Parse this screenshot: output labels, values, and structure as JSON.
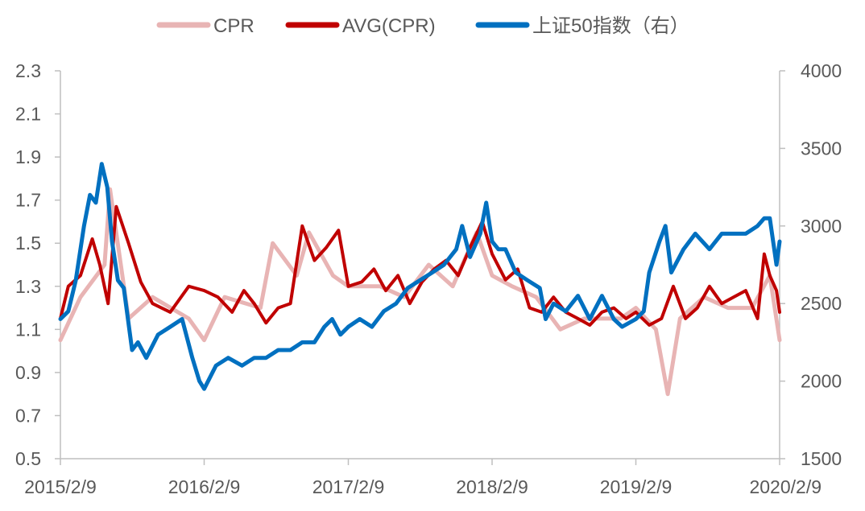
{
  "chart_data": {
    "type": "line",
    "title": "",
    "legend_position": "top",
    "grid": false,
    "x_ticks": [
      "2015/2/9",
      "2016/2/9",
      "2017/2/9",
      "2018/2/9",
      "2019/2/9",
      "2020/2/9"
    ],
    "x_range": [
      "2015/2/9",
      "2020/2/9"
    ],
    "y_left": {
      "range": [
        0.5,
        2.3
      ],
      "ticks": [
        "0.5",
        "0.7",
        "0.9",
        "1.1",
        "1.3",
        "1.5",
        "1.7",
        "1.9",
        "2.1",
        "2.3"
      ]
    },
    "y_right": {
      "range": [
        1500,
        4000
      ],
      "ticks": [
        "1500",
        "2000",
        "2500",
        "3000",
        "3500",
        "4000"
      ]
    },
    "series": [
      {
        "name": "CPR",
        "color": "#E8B4B4",
        "axis": "left",
        "x": [
          "2015/2/9",
          "2015/4/1",
          "2015/6/1",
          "2015/6/15",
          "2015/8/1",
          "2015/10/1",
          "2016/1/1",
          "2016/2/9",
          "2016/4/1",
          "2016/7/1",
          "2016/8/1",
          "2016/10/1",
          "2016/11/1",
          "2017/1/1",
          "2017/2/9",
          "2017/5/1",
          "2017/7/1",
          "2017/9/1",
          "2017/11/1",
          "2018/1/1",
          "2018/2/9",
          "2018/4/1",
          "2018/6/1",
          "2018/8/1",
          "2018/10/1",
          "2019/1/1",
          "2019/2/9",
          "2019/4/1",
          "2019/5/1",
          "2019/6/1",
          "2019/8/1",
          "2019/10/1",
          "2019/12/1",
          "2020/1/15",
          "2020/2/9"
        ],
        "values": [
          1.05,
          1.25,
          1.4,
          1.75,
          1.15,
          1.25,
          1.15,
          1.05,
          1.25,
          1.2,
          1.5,
          1.35,
          1.55,
          1.35,
          1.3,
          1.3,
          1.25,
          1.4,
          1.3,
          1.55,
          1.35,
          1.3,
          1.25,
          1.1,
          1.15,
          1.15,
          1.2,
          1.1,
          0.8,
          1.15,
          1.25,
          1.2,
          1.2,
          1.35,
          1.05
        ]
      },
      {
        "name": "AVG(CPR)",
        "color": "#C00000",
        "axis": "left",
        "x": [
          "2015/2/9",
          "2015/3/1",
          "2015/4/1",
          "2015/5/1",
          "2015/5/20",
          "2015/6/10",
          "2015/7/1",
          "2015/8/1",
          "2015/9/1",
          "2015/10/1",
          "2015/11/15",
          "2016/1/1",
          "2016/2/9",
          "2016/3/15",
          "2016/4/20",
          "2016/5/20",
          "2016/6/15",
          "2016/7/15",
          "2016/8/15",
          "2016/9/15",
          "2016/10/15",
          "2016/11/15",
          "2016/12/15",
          "2017/1/15",
          "2017/2/9",
          "2017/3/15",
          "2017/4/15",
          "2017/5/15",
          "2017/6/15",
          "2017/7/15",
          "2017/8/15",
          "2017/9/15",
          "2017/10/15",
          "2017/11/15",
          "2017/12/15",
          "2018/1/15",
          "2018/2/9",
          "2018/3/15",
          "2018/4/15",
          "2018/5/15",
          "2018/6/15",
          "2018/7/15",
          "2018/8/15",
          "2018/9/15",
          "2018/10/15",
          "2018/11/15",
          "2018/12/15",
          "2019/1/15",
          "2019/2/9",
          "2019/3/15",
          "2019/4/15",
          "2019/5/15",
          "2019/6/15",
          "2019/7/15",
          "2019/8/15",
          "2019/9/15",
          "2019/10/15",
          "2019/11/15",
          "2019/12/15",
          "2020/1/1",
          "2020/1/15",
          "2020/2/1",
          "2020/2/9"
        ],
        "values": [
          1.15,
          1.3,
          1.35,
          1.52,
          1.4,
          1.22,
          1.67,
          1.5,
          1.32,
          1.22,
          1.18,
          1.3,
          1.28,
          1.25,
          1.18,
          1.28,
          1.22,
          1.13,
          1.2,
          1.22,
          1.58,
          1.42,
          1.48,
          1.56,
          1.3,
          1.32,
          1.38,
          1.28,
          1.35,
          1.22,
          1.32,
          1.38,
          1.42,
          1.35,
          1.48,
          1.6,
          1.45,
          1.33,
          1.38,
          1.2,
          1.18,
          1.25,
          1.18,
          1.15,
          1.12,
          1.18,
          1.2,
          1.15,
          1.18,
          1.12,
          1.15,
          1.3,
          1.15,
          1.2,
          1.3,
          1.22,
          1.25,
          1.28,
          1.15,
          1.45,
          1.35,
          1.28,
          1.18
        ]
      },
      {
        "name": "上证50指数（右）",
        "color": "#0070C0",
        "axis": "right",
        "x": [
          "2015/2/9",
          "2015/3/1",
          "2015/3/20",
          "2015/4/10",
          "2015/4/25",
          "2015/5/10",
          "2015/5/25",
          "2015/6/8",
          "2015/6/20",
          "2015/7/5",
          "2015/7/20",
          "2015/8/10",
          "2015/8/25",
          "2015/9/15",
          "2015/10/15",
          "2015/11/15",
          "2015/12/15",
          "2016/1/10",
          "2016/1/28",
          "2016/2/9",
          "2016/3/10",
          "2016/4/10",
          "2016/5/15",
          "2016/6/15",
          "2016/7/15",
          "2016/8/15",
          "2016/9/15",
          "2016/10/15",
          "2016/11/15",
          "2016/12/10",
          "2016/12/30",
          "2017/1/20",
          "2017/2/9",
          "2017/3/10",
          "2017/4/10",
          "2017/5/10",
          "2017/6/10",
          "2017/7/10",
          "2017/8/10",
          "2017/9/10",
          "2017/10/10",
          "2017/11/10",
          "2017/11/25",
          "2017/12/15",
          "2018/1/10",
          "2018/1/25",
          "2018/2/9",
          "2018/2/25",
          "2018/3/15",
          "2018/4/10",
          "2018/5/10",
          "2018/6/10",
          "2018/6/25",
          "2018/7/15",
          "2018/8/15",
          "2018/9/15",
          "2018/10/15",
          "2018/11/15",
          "2018/12/15",
          "2019/1/5",
          "2019/2/9",
          "2019/3/1",
          "2019/3/15",
          "2019/4/10",
          "2019/4/25",
          "2019/5/10",
          "2019/6/10",
          "2019/7/10",
          "2019/8/15",
          "2019/9/15",
          "2019/10/15",
          "2019/11/15",
          "2019/12/15",
          "2020/1/1",
          "2020/1/15",
          "2020/2/1",
          "2020/2/9"
        ],
        "values": [
          2400,
          2450,
          2650,
          3000,
          3200,
          3150,
          3400,
          3250,
          2900,
          2650,
          2600,
          2200,
          2250,
          2150,
          2300,
          2350,
          2400,
          2150,
          2000,
          1950,
          2100,
          2150,
          2100,
          2150,
          2150,
          2200,
          2200,
          2250,
          2250,
          2350,
          2400,
          2300,
          2350,
          2400,
          2350,
          2450,
          2500,
          2600,
          2650,
          2700,
          2750,
          2850,
          3000,
          2800,
          2950,
          3150,
          2900,
          2850,
          2850,
          2700,
          2650,
          2600,
          2400,
          2500,
          2450,
          2550,
          2400,
          2550,
          2400,
          2350,
          2400,
          2450,
          2700,
          2900,
          3000,
          2700,
          2850,
          2950,
          2850,
          2950,
          2950,
          2950,
          3000,
          3050,
          3050,
          2750,
          2900
        ]
      }
    ]
  }
}
